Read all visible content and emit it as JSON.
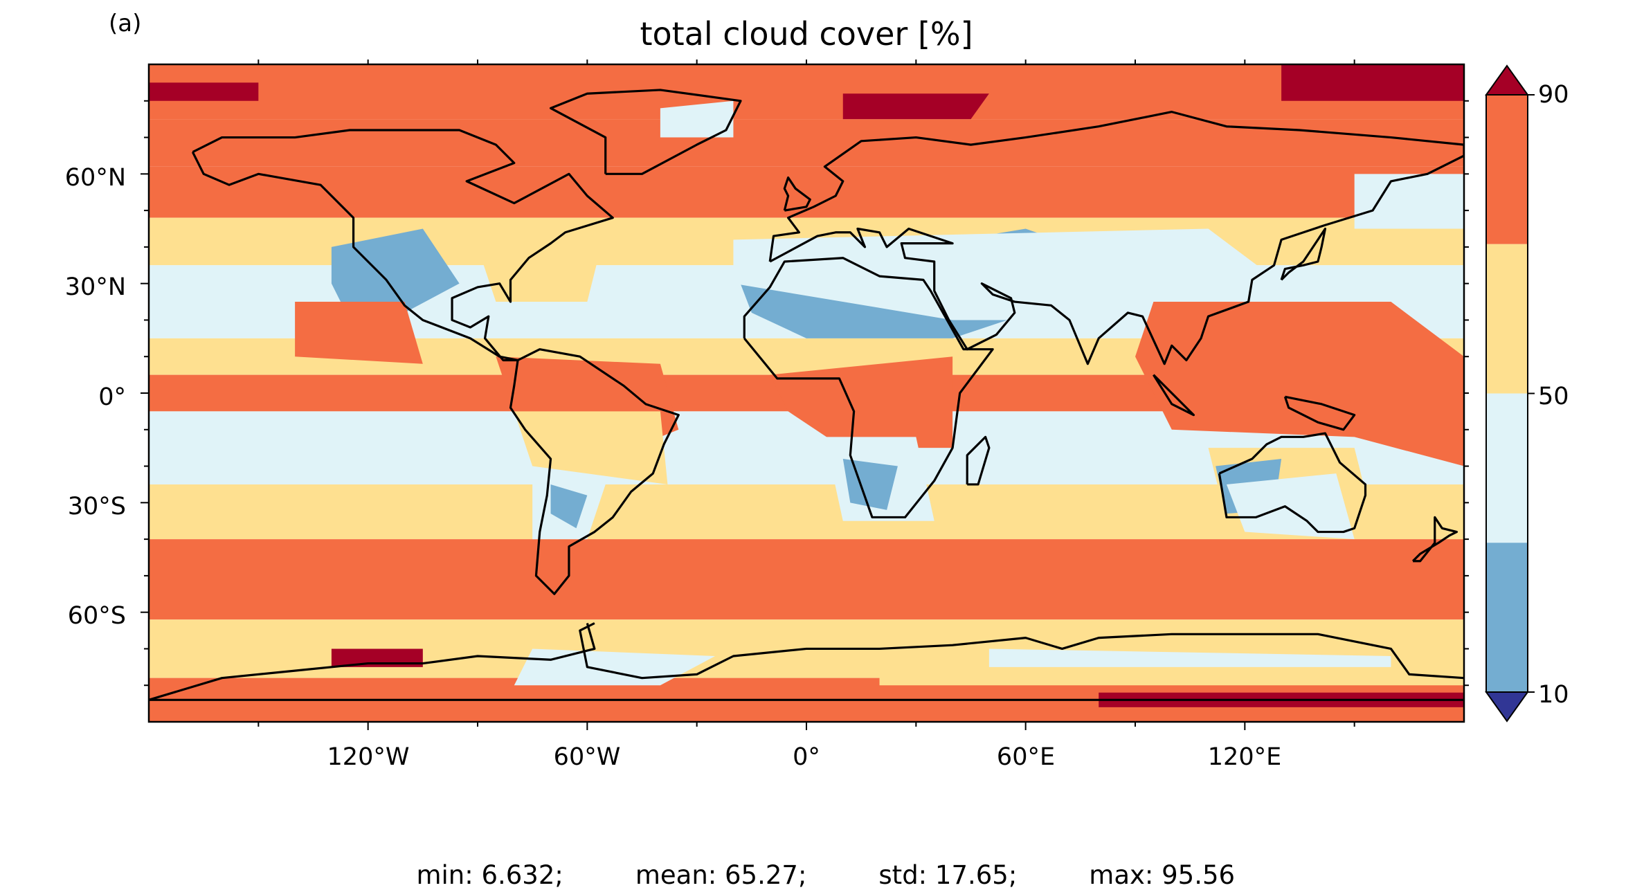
{
  "panel_label": "(a)",
  "title": "total cloud cover [%]",
  "lat_ticks": [
    "60°N",
    "30°N",
    "0°",
    "30°S",
    "60°S"
  ],
  "lon_ticks": [
    "120°W",
    "60°W",
    "0°",
    "60°E",
    "120°E"
  ],
  "colorbar": {
    "tick_labels": [
      "90",
      "50",
      "10"
    ],
    "colors": {
      "over": "#a50026",
      "b70_90": "#f46d43",
      "b50_70": "#fee090",
      "b30_50": "#e0f3f8",
      "b10_30": "#74add1",
      "under": "#313695"
    }
  },
  "stats": {
    "min": "min: 6.632;",
    "mean": "mean: 65.27;",
    "std": "std: 17.65;",
    "max": "max: 95.56"
  },
  "chart_data": {
    "type": "heatmap",
    "title": "total cloud cover [%]",
    "projection": "PlateCarree",
    "xlim": [
      -180,
      180
    ],
    "ylim": [
      -90,
      90
    ],
    "xticks": [
      -120,
      -60,
      0,
      60,
      120
    ],
    "yticks": [
      60,
      30,
      0,
      -30,
      -60
    ],
    "color_levels": [
      10,
      30,
      50,
      70,
      90
    ],
    "extend": "both",
    "summary": {
      "min": 6.632,
      "mean": 65.27,
      "std": 17.65,
      "max": 95.56
    }
  }
}
